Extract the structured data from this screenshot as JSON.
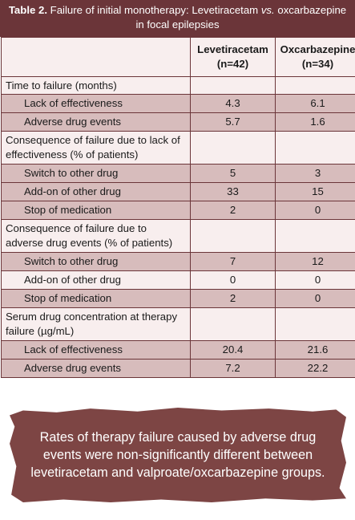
{
  "header": {
    "table_number": "Table 2.",
    "title_part1": "Failure of initial monotherapy: Levetiracetam",
    "title_vs": "vs.",
    "title_part2": "oxcarbazepine in focal epilepsies"
  },
  "columns": [
    {
      "name": "Levetiracetam",
      "n": "(n=42)"
    },
    {
      "name": "Oxcarbazepine",
      "n": "(n=34)"
    }
  ],
  "rows": [
    {
      "label": "Time to failure (months)",
      "lev": "",
      "oxc": ""
    },
    {
      "label": "Lack of effectiveness",
      "lev": "4.3",
      "oxc": "6.1"
    },
    {
      "label": "Adverse drug events",
      "lev": "5.7",
      "oxc": "1.6"
    },
    {
      "label": "Consequence of failure due to lack of effectiveness (% of patients)",
      "lev": "",
      "oxc": ""
    },
    {
      "label": "Switch to other drug",
      "lev": "5",
      "oxc": "3"
    },
    {
      "label": "Add-on of other drug",
      "lev": "33",
      "oxc": "15"
    },
    {
      "label": "Stop of medication",
      "lev": "2",
      "oxc": "0"
    },
    {
      "label": "Consequence of failure due to adverse drug events (% of patients)",
      "lev": "",
      "oxc": ""
    },
    {
      "label": "Switch to other drug",
      "lev": "7",
      "oxc": "12"
    },
    {
      "label": "Add-on of other drug",
      "lev": "0",
      "oxc": "0"
    },
    {
      "label": "Stop of medication",
      "lev": "2",
      "oxc": "0"
    },
    {
      "label": "Serum drug concentration at therapy failure (µg/mL)",
      "lev": "",
      "oxc": ""
    },
    {
      "label": "Lack of effectiveness",
      "lev": "20.4",
      "oxc": "21.6"
    },
    {
      "label": "Adverse drug events",
      "lev": "7.2",
      "oxc": "22.2"
    }
  ],
  "callout": {
    "text": "Rates of therapy failure caused by adverse drug events were non-significantly different between levetiracetam and valproate/oxcarbazepine groups."
  },
  "colors": {
    "header_bg": "#6b3539",
    "row_shaded": "#d7bcbc",
    "row_light": "#f8eeee",
    "callout_bg": "#7d4544"
  }
}
